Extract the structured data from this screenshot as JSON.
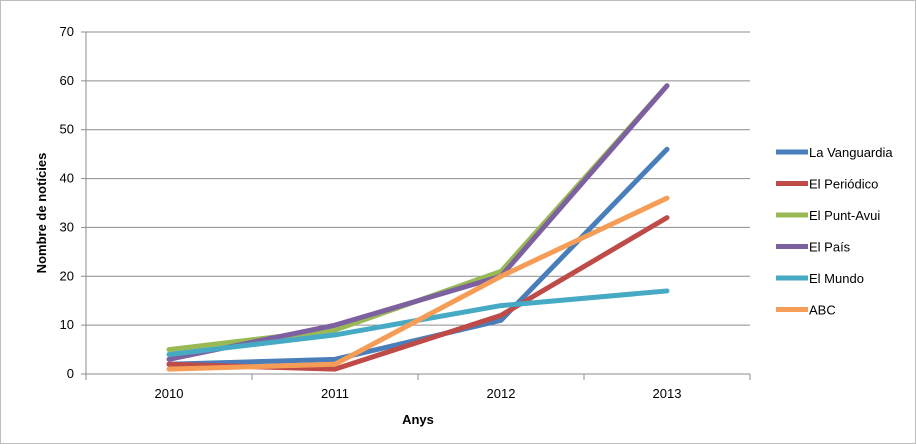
{
  "chart_data": {
    "type": "line",
    "title": "",
    "xlabel": "Anys",
    "ylabel": "Nombre de notícies",
    "categories": [
      "2010",
      "2011",
      "2012",
      "2013"
    ],
    "yticks": [
      "0",
      "10",
      "20",
      "30",
      "40",
      "50",
      "60",
      "70"
    ],
    "ylim": [
      0,
      70
    ],
    "grid": true,
    "legend_position": "right",
    "series": [
      {
        "name": "La Vanguardia",
        "color": "#4a7ebb",
        "values": [
          2,
          3,
          11,
          46
        ]
      },
      {
        "name": "El Periódico",
        "color": "#be4b48",
        "values": [
          2,
          1,
          12,
          32
        ]
      },
      {
        "name": "El Punt-Avui",
        "color": "#98b954",
        "values": [
          5,
          9,
          21,
          59
        ]
      },
      {
        "name": "El País",
        "color": "#7d60a0",
        "values": [
          3,
          10,
          20,
          59
        ]
      },
      {
        "name": "El Mundo",
        "color": "#46aac5",
        "values": [
          4,
          8,
          14,
          17
        ]
      },
      {
        "name": "ABC",
        "color": "#f59d56",
        "values": [
          1,
          2,
          20,
          36
        ]
      }
    ]
  }
}
